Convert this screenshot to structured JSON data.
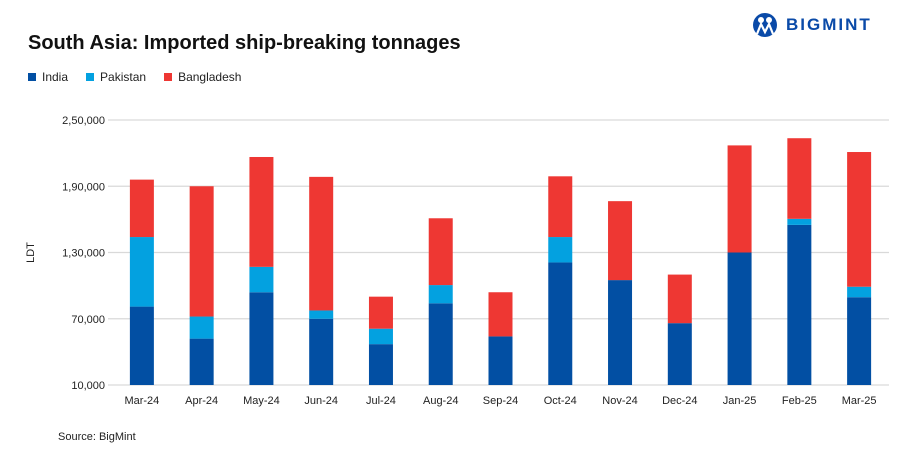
{
  "brand": "BIGMINT",
  "source": "Source: BigMint",
  "chart_data": {
    "type": "bar",
    "stacked": true,
    "title": "South Asia: Imported ship-breaking tonnages",
    "ylabel": "LDT",
    "xlabel": "",
    "ylim": [
      10000,
      250000
    ],
    "yticks": [
      10000,
      70000,
      130000,
      190000,
      250000
    ],
    "ytick_labels": [
      "10,000",
      "70,000",
      "1,30,000",
      "1,90,000",
      "2,50,000"
    ],
    "grid": true,
    "legend": "top-left",
    "categories": [
      "Mar-24",
      "Apr-24",
      "May-24",
      "Jun-24",
      "Jul-24",
      "Aug-24",
      "Sep-24",
      "Oct-24",
      "Nov-24",
      "Dec-24",
      "Jan-25",
      "Feb-25",
      "Mar-25"
    ],
    "series": [
      {
        "name": "India",
        "color": "#024fa3",
        "values": [
          71000,
          42000,
          84000,
          60000,
          37000,
          74000,
          44000,
          111000,
          95000,
          56000,
          120000,
          145000,
          79500
        ]
      },
      {
        "name": "Pakistan",
        "color": "#03a1e0",
        "values": [
          63000,
          20000,
          23000,
          7500,
          14000,
          16500,
          0,
          23000,
          0,
          0,
          0,
          5500,
          9500
        ]
      },
      {
        "name": "Bangladesh",
        "color": "#ee3733",
        "values": [
          52000,
          118000,
          99500,
          121000,
          29000,
          60500,
          40000,
          55000,
          71500,
          44000,
          97000,
          73000,
          122000
        ]
      }
    ]
  }
}
